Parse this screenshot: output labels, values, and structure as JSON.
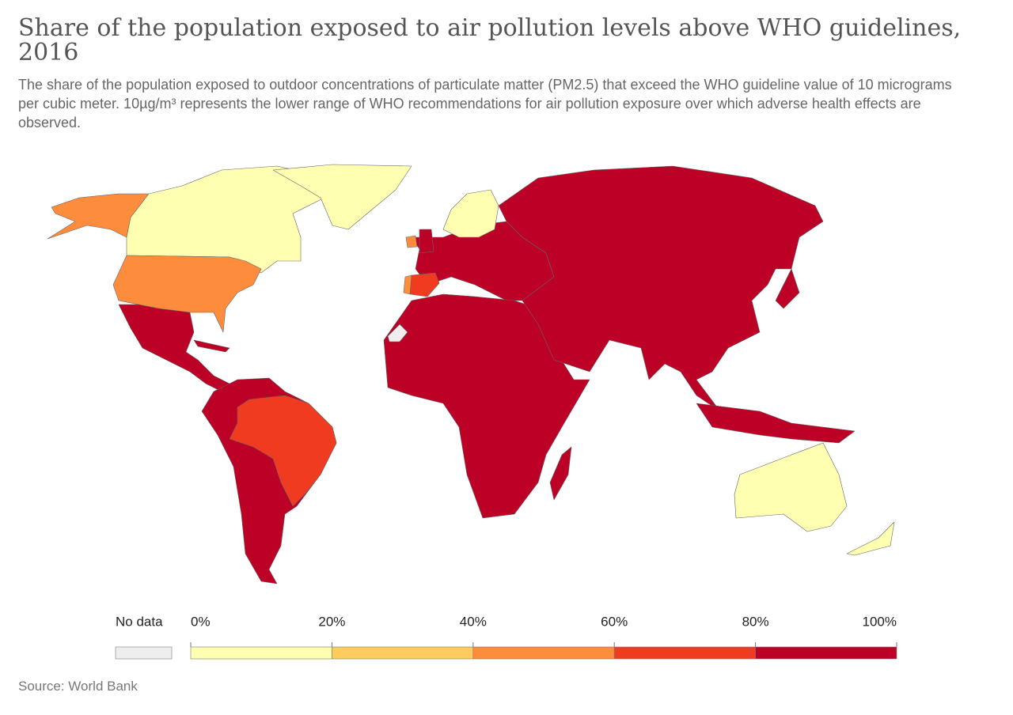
{
  "chart_data": {
    "type": "choropleth",
    "title": "Share of the population exposed to air pollution levels above WHO guidelines, 2016",
    "subtitle": "The share of the population exposed to outdoor concentrations of particulate matter (PM2.5) that exceed the WHO guideline value of 10 micrograms per cubic meter. 10µg/m³ represents the lower range of WHO recommendations for air pollution exposure over which adverse health effects are observed.",
    "source": "Source: World Bank",
    "legend": {
      "no_data": {
        "label": "No data",
        "color": "#eeeeee"
      },
      "ticks": [
        {
          "value": 0,
          "label": "0%"
        },
        {
          "value": 20,
          "label": "20%"
        },
        {
          "value": 40,
          "label": "40%"
        },
        {
          "value": 60,
          "label": "60%"
        },
        {
          "value": 80,
          "label": "80%"
        },
        {
          "value": 100,
          "label": "100%"
        }
      ],
      "colors": [
        "#ffffb2",
        "#fecc5c",
        "#fd8d3c",
        "#f03b20",
        "#bd0026"
      ]
    }
  }
}
